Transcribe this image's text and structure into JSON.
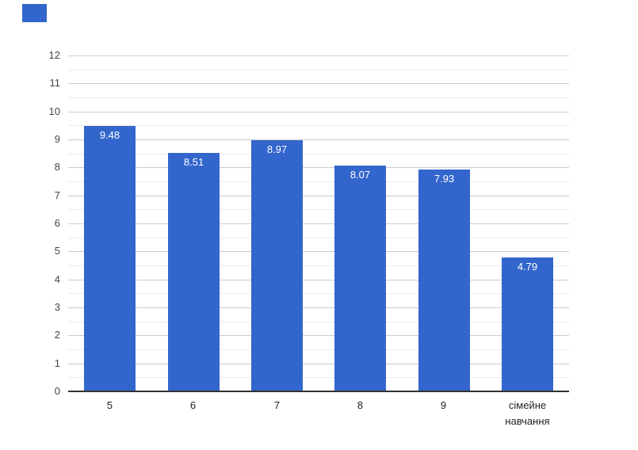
{
  "chart_data": {
    "type": "bar",
    "title": "",
    "xlabel": "",
    "ylabel": "",
    "categories": [
      "5",
      "6",
      "7",
      "8",
      "9",
      "сімейне навчання"
    ],
    "values": [
      9.48,
      8.51,
      8.97,
      8.07,
      7.93,
      4.79
    ],
    "value_labels": [
      "9.48",
      "8.51",
      "8.97",
      "8.07",
      "7.93",
      "4.79"
    ],
    "ylim": [
      0,
      12
    ],
    "y_ticks": [
      0,
      1,
      2,
      3,
      4,
      5,
      6,
      7,
      8,
      9,
      10,
      11,
      12
    ],
    "grid": "horizontal major gridlines at integers, minor gridlines at halves",
    "legend": {
      "position": "top-left",
      "swatch_only": true,
      "label": ""
    },
    "colors": {
      "bar": "#3366cc",
      "bar_value_text": "#ffffff",
      "y_axis_text": "#444444",
      "x_axis_text": "#222222",
      "gridline_major": "#cccccc",
      "gridline_minor": "#ebebeb",
      "baseline": "#333333",
      "background": "#ffffff"
    }
  }
}
